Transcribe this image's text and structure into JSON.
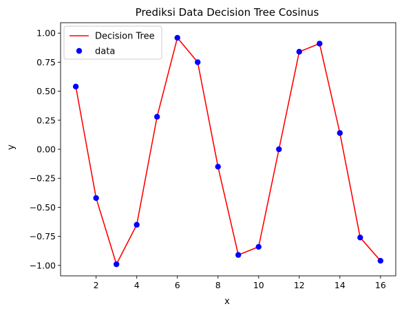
{
  "chart_data": {
    "type": "line",
    "title": "Prediksi Data Decision Tree Cosinus",
    "xlabel": "x",
    "ylabel": "y",
    "xlim": [
      0.25,
      16.75
    ],
    "ylim": [
      -1.09,
      1.09
    ],
    "xticks": [
      2,
      4,
      6,
      8,
      10,
      12,
      14,
      16
    ],
    "yticks": [
      -1.0,
      -0.75,
      -0.5,
      -0.25,
      0.0,
      0.25,
      0.5,
      0.75,
      1.0
    ],
    "ytick_labels": [
      "−1.00",
      "−0.75",
      "−0.50",
      "−0.25",
      "0.00",
      "0.25",
      "0.50",
      "0.75",
      "1.00"
    ],
    "x": [
      1,
      2,
      3,
      4,
      5,
      6,
      7,
      8,
      9,
      10,
      11,
      12,
      13,
      14,
      15,
      16
    ],
    "series": [
      {
        "name": "Decision Tree",
        "kind": "line",
        "color": "#ff0000",
        "values": [
          0.54,
          -0.42,
          -0.99,
          -0.65,
          0.28,
          0.96,
          0.75,
          -0.15,
          -0.91,
          -0.84,
          0.0,
          0.84,
          0.91,
          0.14,
          -0.76,
          -0.96
        ]
      },
      {
        "name": "data",
        "kind": "scatter",
        "color": "#0000ff",
        "values": [
          0.54,
          -0.42,
          -0.99,
          -0.65,
          0.28,
          0.96,
          0.75,
          -0.15,
          -0.91,
          -0.84,
          0.0,
          0.84,
          0.91,
          0.14,
          -0.76,
          -0.96
        ]
      }
    ],
    "legend_position": "upper-left",
    "grid": false
  }
}
